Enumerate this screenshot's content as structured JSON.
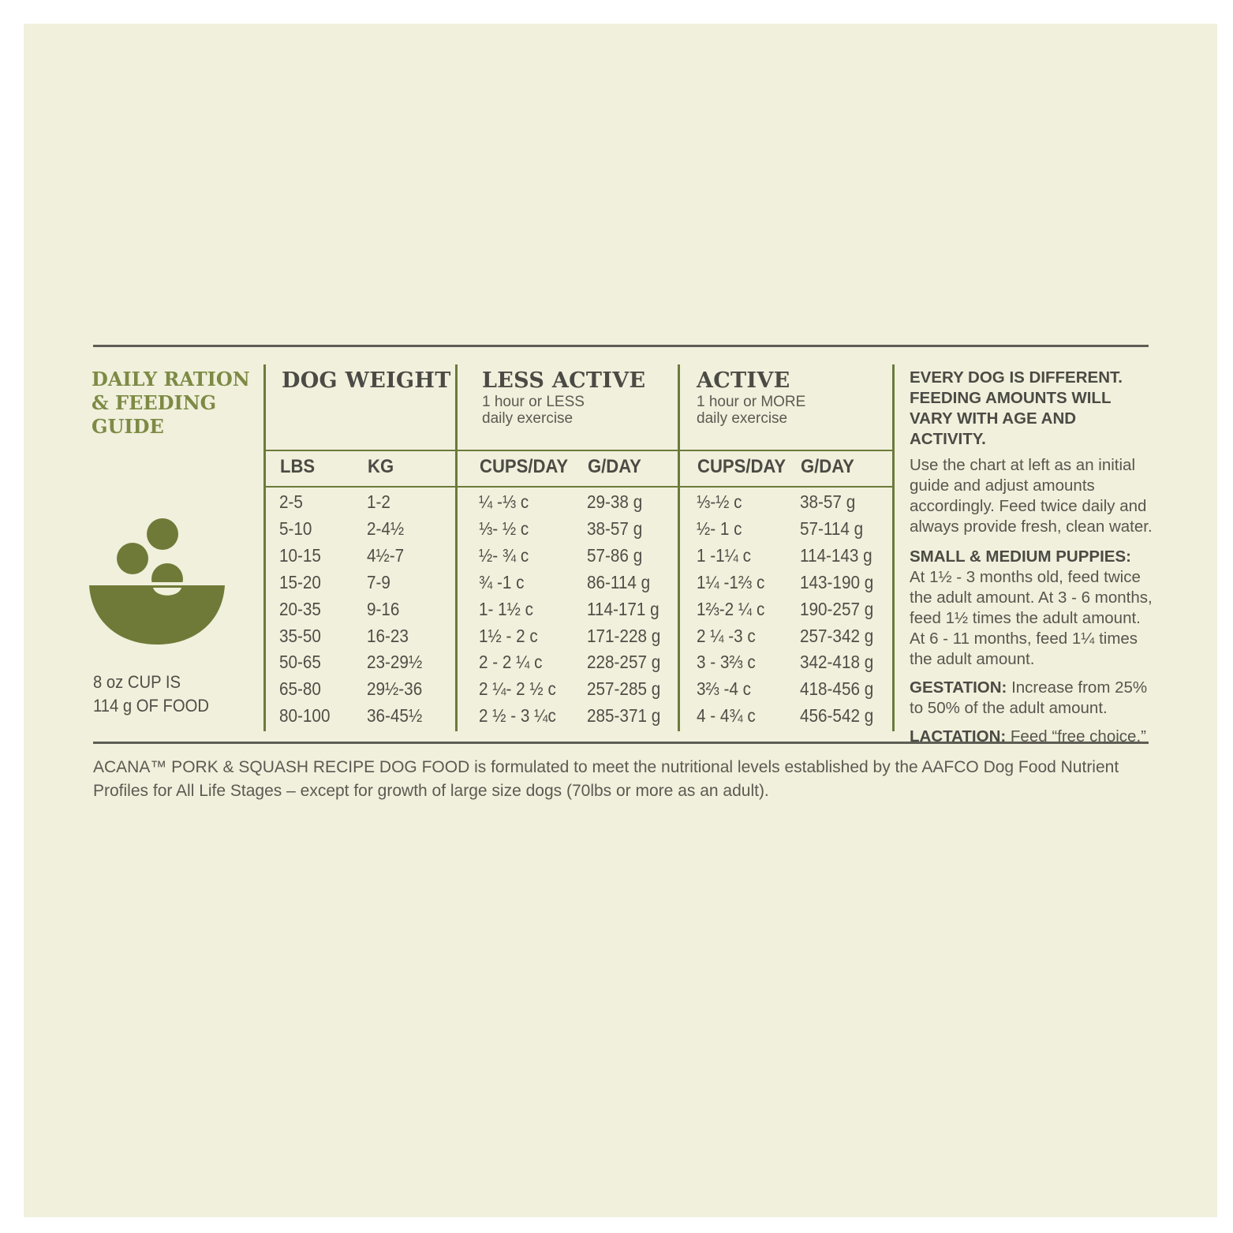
{
  "guide": {
    "title": "DAILY RATION & FEEDING GUIDE",
    "cup_note_line1": "8 oz CUP IS",
    "cup_note_line2": "114 g OF FOOD"
  },
  "icons": {
    "bowl": "food-bowl-icon"
  },
  "colors": {
    "accent": "#7d8a45",
    "rule": "#5e5d55",
    "divider": "#6b7a3b",
    "background": "#f1f0dc"
  },
  "table": {
    "group_headers": [
      {
        "title": "DOG WEIGHT",
        "sub": ""
      },
      {
        "title": "LESS ACTIVE",
        "sub": "1 hour or LESS\ndaily exercise"
      },
      {
        "title": "ACTIVE",
        "sub": "1 hour or MORE\ndaily exercise"
      }
    ],
    "columns": [
      "LBS",
      "KG",
      "CUPS/DAY",
      "G/DAY",
      "CUPS/DAY",
      "G/DAY"
    ],
    "rows": [
      [
        "2-5",
        "1-2",
        "¼ -⅓ c",
        "29-38 g",
        "⅓-½ c",
        "38-57 g"
      ],
      [
        "5-10",
        "2-4½",
        "⅓- ½ c",
        "38-57 g",
        "½- 1 c",
        "57-114 g"
      ],
      [
        "10-15",
        "4½-7",
        "½- ¾ c",
        "57-86 g",
        "1 -1¼ c",
        "114-143 g"
      ],
      [
        "15-20",
        "7-9",
        "¾ -1 c",
        "86-114 g",
        "1¼ -1⅔ c",
        "143-190 g"
      ],
      [
        "20-35",
        "9-16",
        "1- 1½ c",
        "114-171 g",
        "1⅔-2 ¼ c",
        "190-257 g"
      ],
      [
        "35-50",
        "16-23",
        "1½ - 2 c",
        "171-228 g",
        "2 ¼ -3 c",
        "257-342 g"
      ],
      [
        "50-65",
        "23-29½",
        "2 - 2 ¼ c",
        "228-257 g",
        "3 - 3⅔ c",
        "342-418 g"
      ],
      [
        "65-80",
        "29½-36",
        "2 ¼- 2 ½ c",
        "257-285 g",
        "3⅔ -4 c",
        "418-456 g"
      ],
      [
        "80-100",
        "36-45½",
        "2 ½ - 3 ¼c",
        "285-371 g",
        "4 - 4¾ c",
        "456-542 g"
      ]
    ]
  },
  "sidebar": {
    "heading": "EVERY DOG IS DIFFERENT. FEEDING AMOUNTS WILL VARY WITH AGE AND ACTIVITY.",
    "intro": "Use the chart at left as an initial guide and adjust amounts accordingly. Feed twice daily and always provide fresh, clean water.",
    "puppies_label": "SMALL & MEDIUM PUPPIES:",
    "puppies_text": "At 1½ - 3 months old, feed twice the adult amount. At 3 - 6 months, feed 1½ times the adult amount. At 6 - 11 months, feed 1¼ times the adult amount.",
    "gestation_label": "GESTATION:",
    "gestation_text": " Increase from 25% to 50% of the adult amount.",
    "lactation_label": "LACTATION:",
    "lactation_text": " Feed “free choice.”"
  },
  "footnote": "ACANA™ PORK & SQUASH RECIPE DOG FOOD is formulated to meet the nutritional levels established by the AAFCO Dog Food Nutrient Profiles for All Life Stages – except for growth of large size dogs (70lbs or more as an adult)."
}
